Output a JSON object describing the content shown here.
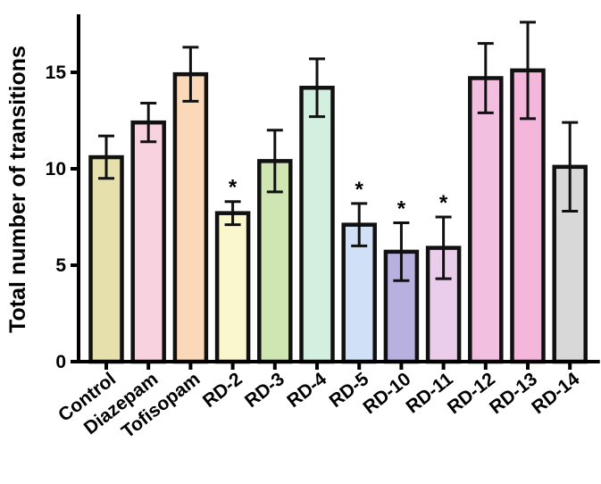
{
  "chart_data": {
    "type": "bar",
    "title": "",
    "xlabel": "",
    "ylabel": "Total number of transitions",
    "ylim": [
      0,
      18
    ],
    "yticks": [
      0,
      5,
      10,
      15
    ],
    "grid": false,
    "categories": [
      "Control",
      "Diazepam",
      "Tofisopam",
      "RD-2",
      "RD-3",
      "RD-4",
      "RD-5",
      "RD-10",
      "RD-11",
      "RD-12",
      "RD-13",
      "RD-14"
    ],
    "values": [
      10.6,
      12.4,
      14.9,
      7.7,
      10.4,
      14.2,
      7.1,
      5.7,
      5.9,
      14.7,
      15.1,
      10.1
    ],
    "error": [
      1.1,
      1.0,
      1.4,
      0.6,
      1.6,
      1.5,
      1.1,
      1.5,
      1.6,
      1.8,
      2.5,
      2.3
    ],
    "colors": [
      "#e6e0ad",
      "#f9d2df",
      "#fbd8b8",
      "#fbf7cc",
      "#cfe6b3",
      "#d3efdf",
      "#cfe0f7",
      "#b8b1e0",
      "#e9cdea",
      "#f3bfe0",
      "#f5b6dc",
      "#d8d8d8"
    ],
    "significance": [
      "",
      "",
      "",
      "*",
      "",
      "",
      "*",
      "*",
      "*",
      "",
      "",
      ""
    ]
  }
}
